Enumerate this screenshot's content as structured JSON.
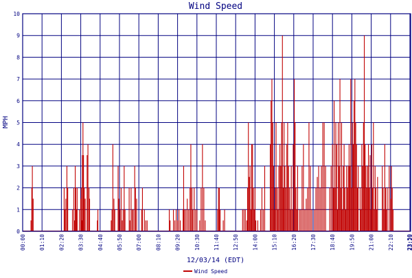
{
  "chart_data": {
    "type": "bar",
    "title": "Wind Speed",
    "xlabel": "12/03/14 (EDT)",
    "ylabel": "MPH",
    "ylim": [
      0,
      10
    ],
    "yticks": [
      "0",
      "1",
      "2",
      "3",
      "4",
      "5",
      "6",
      "7",
      "8",
      "9",
      "10"
    ],
    "xticks": [
      "00:00",
      "01:10",
      "02:20",
      "03:30",
      "04:40",
      "05:50",
      "07:00",
      "08:10",
      "09:20",
      "10:30",
      "11:40",
      "12:50",
      "14:00",
      "15:10",
      "16:20",
      "17:30",
      "18:40",
      "19:50",
      "21:00",
      "22:10",
      "23:20",
      "23:59"
    ],
    "xrange_minutes": [
      0,
      1439
    ],
    "grid": true,
    "legend_position": "bottom-center",
    "colors": {
      "series": "#c00000",
      "grid": "#000080",
      "frame": "#000080",
      "text": "#000080"
    },
    "series": [
      {
        "name": "Wind Speed",
        "points": [
          [
            30,
            0.5
          ],
          [
            33,
            2
          ],
          [
            35,
            3
          ],
          [
            38,
            1.5
          ],
          [
            150,
            2
          ],
          [
            153,
            1
          ],
          [
            156,
            1.5
          ],
          [
            160,
            3
          ],
          [
            163,
            2
          ],
          [
            180,
            1
          ],
          [
            185,
            2
          ],
          [
            188,
            0.5
          ],
          [
            190,
            3
          ],
          [
            192,
            2
          ],
          [
            195,
            1
          ],
          [
            197,
            2
          ],
          [
            205,
            1
          ],
          [
            210,
            1.5
          ],
          [
            212,
            2
          ],
          [
            214,
            0.5
          ],
          [
            216,
            3.5
          ],
          [
            218,
            5
          ],
          [
            220,
            3.5
          ],
          [
            223,
            2
          ],
          [
            226,
            1.5
          ],
          [
            233,
            3.5
          ],
          [
            236,
            4
          ],
          [
            240,
            2
          ],
          [
            242,
            1.5
          ],
          [
            270,
            0.5
          ],
          [
            272,
            1
          ],
          [
            320,
            0.5
          ],
          [
            323,
            1
          ],
          [
            326,
            4
          ],
          [
            330,
            1.5
          ],
          [
            333,
            1
          ],
          [
            345,
            3
          ],
          [
            348,
            1.5
          ],
          [
            352,
            1
          ],
          [
            356,
            2
          ],
          [
            360,
            0.5
          ],
          [
            363,
            1
          ],
          [
            367,
            3
          ],
          [
            370,
            1
          ],
          [
            385,
            2
          ],
          [
            388,
            0.5
          ],
          [
            392,
            2
          ],
          [
            396,
            1
          ],
          [
            400,
            1
          ],
          [
            405,
            3
          ],
          [
            408,
            2
          ],
          [
            412,
            1.5
          ],
          [
            430,
            1
          ],
          [
            433,
            2
          ],
          [
            440,
            1
          ],
          [
            445,
            0.5
          ],
          [
            450,
            0.5
          ],
          [
            530,
            1
          ],
          [
            533,
            0.5
          ],
          [
            545,
            1
          ],
          [
            550,
            0.5
          ],
          [
            555,
            1
          ],
          [
            560,
            0.5
          ],
          [
            565,
            1
          ],
          [
            570,
            0.5
          ],
          [
            580,
            1
          ],
          [
            582,
            3
          ],
          [
            585,
            1
          ],
          [
            590,
            1
          ],
          [
            595,
            1.5
          ],
          [
            600,
            1
          ],
          [
            605,
            2
          ],
          [
            608,
            4
          ],
          [
            612,
            2
          ],
          [
            615,
            1
          ],
          [
            620,
            2
          ],
          [
            625,
            1
          ],
          [
            630,
            1
          ],
          [
            640,
            0.5
          ],
          [
            645,
            2
          ],
          [
            650,
            4
          ],
          [
            655,
            2
          ],
          [
            660,
            0.5
          ],
          [
            705,
            1
          ],
          [
            708,
            2
          ],
          [
            711,
            2
          ],
          [
            714,
            1
          ],
          [
            725,
            0.5
          ],
          [
            730,
            1
          ],
          [
            795,
            1
          ],
          [
            800,
            1
          ],
          [
            805,
            1
          ],
          [
            810,
            0.5
          ],
          [
            813,
            2
          ],
          [
            816,
            5
          ],
          [
            819,
            2.5
          ],
          [
            822,
            3
          ],
          [
            825,
            1
          ],
          [
            828,
            4
          ],
          [
            831,
            4
          ],
          [
            834,
            2
          ],
          [
            837,
            1
          ],
          [
            840,
            2
          ],
          [
            843,
            0.5
          ],
          [
            850,
            0.5
          ],
          [
            860,
            1
          ],
          [
            865,
            2
          ],
          [
            870,
            1
          ],
          [
            875,
            3
          ],
          [
            895,
            4
          ],
          [
            898,
            6
          ],
          [
            901,
            7
          ],
          [
            904,
            5
          ],
          [
            907,
            3
          ],
          [
            910,
            1
          ],
          [
            913,
            2
          ],
          [
            916,
            5
          ],
          [
            920,
            2
          ],
          [
            923,
            1
          ],
          [
            926,
            3
          ],
          [
            930,
            4
          ],
          [
            933,
            3
          ],
          [
            936,
            5
          ],
          [
            939,
            9
          ],
          [
            942,
            2
          ],
          [
            945,
            5
          ],
          [
            948,
            3
          ],
          [
            951,
            2
          ],
          [
            955,
            4
          ],
          [
            958,
            5
          ],
          [
            961,
            3
          ],
          [
            965,
            2
          ],
          [
            968,
            1
          ],
          [
            971,
            3
          ],
          [
            975,
            1
          ],
          [
            978,
            4
          ],
          [
            982,
            7
          ],
          [
            985,
            5
          ],
          [
            988,
            2
          ],
          [
            991,
            1
          ],
          [
            994,
            3
          ],
          [
            1000,
            1
          ],
          [
            1005,
            1
          ],
          [
            1010,
            3
          ],
          [
            1015,
            4
          ],
          [
            1020,
            1
          ],
          [
            1025,
            1.5
          ],
          [
            1030,
            2
          ],
          [
            1035,
            5
          ],
          [
            1040,
            3
          ],
          [
            1045,
            1
          ],
          [
            1055,
            1
          ],
          [
            1060,
            2
          ],
          [
            1065,
            2.5
          ],
          [
            1070,
            3
          ],
          [
            1075,
            2
          ],
          [
            1080,
            3
          ],
          [
            1085,
            5
          ],
          [
            1090,
            5
          ],
          [
            1095,
            3
          ],
          [
            1110,
            2
          ],
          [
            1115,
            3
          ],
          [
            1120,
            4
          ],
          [
            1123,
            2
          ],
          [
            1126,
            6
          ],
          [
            1129,
            2
          ],
          [
            1132,
            5
          ],
          [
            1135,
            4
          ],
          [
            1138,
            1
          ],
          [
            1141,
            5
          ],
          [
            1144,
            3
          ],
          [
            1147,
            7
          ],
          [
            1150,
            2
          ],
          [
            1153,
            5
          ],
          [
            1156,
            1
          ],
          [
            1159,
            3
          ],
          [
            1162,
            4
          ],
          [
            1165,
            2
          ],
          [
            1168,
            1
          ],
          [
            1171,
            3
          ],
          [
            1174,
            2
          ],
          [
            1177,
            3
          ],
          [
            1180,
            4
          ],
          [
            1183,
            3
          ],
          [
            1186,
            7
          ],
          [
            1189,
            2
          ],
          [
            1192,
            5
          ],
          [
            1195,
            4
          ],
          [
            1198,
            6
          ],
          [
            1201,
            7
          ],
          [
            1204,
            5
          ],
          [
            1207,
            4
          ],
          [
            1210,
            2
          ],
          [
            1213,
            3
          ],
          [
            1220,
            2
          ],
          [
            1223,
            1
          ],
          [
            1226,
            4
          ],
          [
            1229,
            3
          ],
          [
            1232,
            5
          ],
          [
            1235,
            9
          ],
          [
            1238,
            4
          ],
          [
            1241,
            3
          ],
          [
            1244,
            2
          ],
          [
            1247,
            3
          ],
          [
            1250,
            4
          ],
          [
            1253,
            2
          ],
          [
            1256,
            3.5
          ],
          [
            1259,
            1
          ],
          [
            1262,
            4
          ],
          [
            1265,
            2
          ],
          [
            1268,
            5
          ],
          [
            1271,
            1
          ],
          [
            1274,
            3
          ],
          [
            1277,
            2
          ],
          [
            1280,
            1
          ],
          [
            1283,
            2.5
          ],
          [
            1300,
            3
          ],
          [
            1303,
            2
          ],
          [
            1306,
            1
          ],
          [
            1309,
            4
          ],
          [
            1312,
            2
          ],
          [
            1315,
            1
          ],
          [
            1318,
            2
          ],
          [
            1325,
            3
          ],
          [
            1330,
            1.5
          ],
          [
            1333,
            3
          ],
          [
            1336,
            2
          ],
          [
            1339,
            1
          ]
        ]
      }
    ]
  }
}
